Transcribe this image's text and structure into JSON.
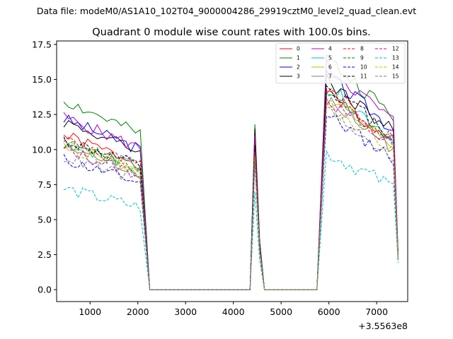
{
  "chart_data": {
    "type": "line",
    "suptitle": "Data file: modeM0/AS1A10_102T04_9000004286_29919cztM0_level2_quad_clean.evt",
    "title": "Quadrant 0 module wise count rates with 100.0s bins.",
    "xlabel": "",
    "ylabel": "",
    "x_offset_label": "+3.5563e8",
    "xlim": [
      300,
      7650
    ],
    "ylim": [
      -0.85,
      17.75
    ],
    "xticks": [
      1000,
      2000,
      3000,
      4000,
      5000,
      6000,
      7000
    ],
    "xtick_labels": [
      "1000",
      "2000",
      "3000",
      "4000",
      "5000",
      "6000",
      "7000"
    ],
    "yticks": [
      0,
      2.5,
      5,
      7.5,
      10,
      12.5,
      15,
      17.5
    ],
    "ytick_labels": [
      "0.0",
      "2.5",
      "5.0",
      "7.5",
      "10.0",
      "12.5",
      "15.0",
      "17.5"
    ],
    "legend": {
      "position": "top-right",
      "columns": 4
    },
    "x_segments": [
      {
        "start": 450,
        "step": 100,
        "count": 17
      },
      {
        "start": 2250,
        "step": 100,
        "count": 22
      },
      {
        "start": 4450,
        "step": 100,
        "count": 3
      },
      {
        "start": 4650,
        "step": 100,
        "count": 12
      },
      {
        "start": 5950,
        "step": 100,
        "count": 16
      }
    ],
    "series": [
      {
        "name": "0",
        "color": "#ff0000",
        "dash": false,
        "base": 11.0,
        "peak": 10.8,
        "hi": 14.0,
        "end": 2.4,
        "seed": 1
      },
      {
        "name": "1",
        "color": "#008000",
        "dash": false,
        "base": 13.5,
        "peak": 11.8,
        "hi": 16.5,
        "end": 2.5,
        "seed": 2
      },
      {
        "name": "2",
        "color": "#0000ff",
        "dash": false,
        "base": 12.2,
        "peak": 11.2,
        "hi": 15.3,
        "end": 2.4,
        "seed": 3
      },
      {
        "name": "3",
        "color": "#000000",
        "dash": false,
        "base": 12.0,
        "peak": 11.5,
        "hi": 15.0,
        "end": 2.3,
        "seed": 4
      },
      {
        "name": "4",
        "color": "#bf00bf",
        "dash": false,
        "base": 12.3,
        "peak": 11.0,
        "hi": 16.0,
        "end": 2.5,
        "seed": 5
      },
      {
        "name": "5",
        "color": "#00bfbf",
        "dash": false,
        "base": 10.6,
        "peak": 10.2,
        "hi": 14.5,
        "end": 2.2,
        "seed": 6
      },
      {
        "name": "6",
        "color": "#bfbf00",
        "dash": false,
        "base": 10.4,
        "peak": 9.8,
        "hi": 13.8,
        "end": 2.3,
        "seed": 7
      },
      {
        "name": "7",
        "color": "#808080",
        "dash": false,
        "base": 10.2,
        "peak": 9.5,
        "hi": 13.5,
        "end": 2.2,
        "seed": 8
      },
      {
        "name": "8",
        "color": "#ff0000",
        "dash": true,
        "base": 10.8,
        "peak": 10.4,
        "hi": 14.3,
        "end": 2.3,
        "seed": 9
      },
      {
        "name": "9",
        "color": "#008000",
        "dash": true,
        "base": 10.5,
        "peak": 10.0,
        "hi": 14.0,
        "end": 2.3,
        "seed": 10
      },
      {
        "name": "10",
        "color": "#0000ff",
        "dash": true,
        "base": 9.3,
        "peak": 9.2,
        "hi": 12.5,
        "end": 2.1,
        "seed": 11
      },
      {
        "name": "11",
        "color": "#000000",
        "dash": true,
        "base": 10.7,
        "peak": 10.3,
        "hi": 14.6,
        "end": 2.3,
        "seed": 12
      },
      {
        "name": "12",
        "color": "#bf00bf",
        "dash": true,
        "base": 10.0,
        "peak": 9.8,
        "hi": 13.6,
        "end": 2.2,
        "seed": 13
      },
      {
        "name": "13",
        "color": "#00bfbf",
        "dash": true,
        "base": 7.2,
        "peak": 7.0,
        "hi": 9.8,
        "end": 1.9,
        "seed": 14
      },
      {
        "name": "14",
        "color": "#bfbf00",
        "dash": true,
        "base": 10.3,
        "peak": 9.5,
        "hi": 13.2,
        "end": 2.2,
        "seed": 15
      },
      {
        "name": "15",
        "color": "#808080",
        "dash": true,
        "base": 9.5,
        "peak": 9.0,
        "hi": 12.8,
        "end": 2.1,
        "seed": 16
      }
    ]
  }
}
